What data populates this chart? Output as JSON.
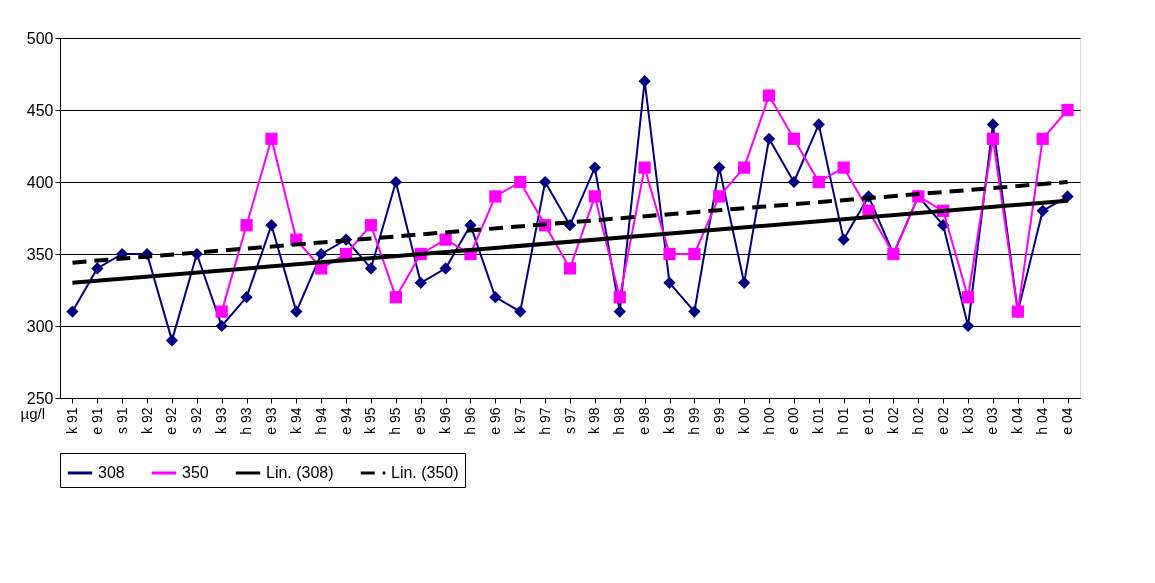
{
  "chart_data": {
    "type": "line",
    "ylabel": "µg/l",
    "categories": [
      "k 91",
      "e 91",
      "s 91",
      "k 92",
      "e 92",
      "s 92",
      "k 93",
      "h 93",
      "e 93",
      "k 94",
      "h 94",
      "e 94",
      "k 95",
      "h 95",
      "e 95",
      "k 96",
      "h 96",
      "e 96",
      "k 97",
      "h 97",
      "s 97",
      "k 98",
      "h 98",
      "e 98",
      "k 99",
      "h 99",
      "e 99",
      "k 00",
      "h 00",
      "e 00",
      "k 01",
      "h 01",
      "e 01",
      "k 02",
      "h 02",
      "e 02",
      "k 03",
      "e 03",
      "k 04",
      "h 04",
      "e 04"
    ],
    "ylim": [
      250,
      500
    ],
    "yticks": [
      250,
      300,
      350,
      400,
      450,
      500
    ],
    "grid": "y",
    "legend": "bottom",
    "series": [
      {
        "name": "308",
        "color": "#000080",
        "marker": "diamond",
        "values": [
          310,
          340,
          350,
          350,
          290,
          350,
          300,
          320,
          370,
          310,
          350,
          360,
          340,
          400,
          330,
          340,
          370,
          320,
          310,
          400,
          370,
          410,
          310,
          470,
          330,
          310,
          410,
          330,
          430,
          400,
          440,
          360,
          390,
          350,
          390,
          370,
          300,
          440,
          310,
          380,
          390
        ]
      },
      {
        "name": "350",
        "color": "#ff00ff",
        "marker": "square",
        "values": [
          null,
          null,
          null,
          null,
          null,
          null,
          310,
          370,
          430,
          360,
          340,
          350,
          370,
          320,
          350,
          360,
          350,
          390,
          400,
          370,
          340,
          390,
          320,
          410,
          350,
          350,
          390,
          410,
          460,
          430,
          400,
          410,
          380,
          350,
          390,
          380,
          320,
          430,
          310,
          430,
          450
        ]
      },
      {
        "name": "Lin. (308)",
        "color": "#000000",
        "marker": "none",
        "line_style": "solid",
        "x": [
          "k 91",
          "e 04"
        ],
        "values": [
          330,
          387
        ]
      },
      {
        "name": "Lin. (350)",
        "color": "#000000",
        "marker": "none",
        "line_style": "dashed",
        "x": [
          "k 91",
          "e 04"
        ],
        "values": [
          344,
          400
        ]
      }
    ]
  }
}
